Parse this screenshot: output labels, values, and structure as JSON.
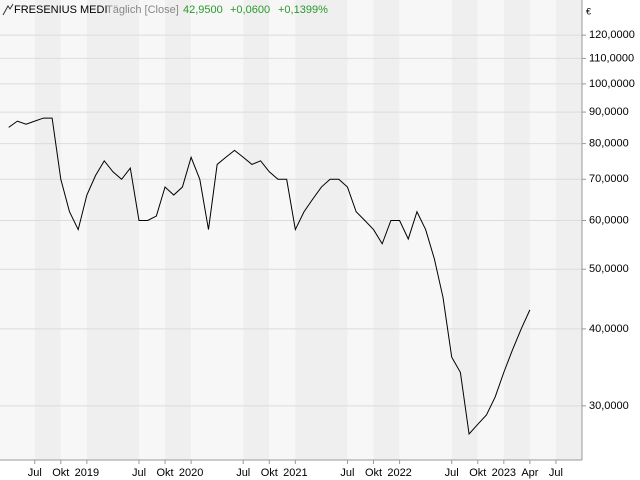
{
  "chart_data": {
    "type": "line",
    "title": "FRESENIUS MEDI",
    "subtitle": "Täglich [Close]",
    "annotations": [
      "42,9500",
      "+0,0600",
      "+0,1399%"
    ],
    "y_unit": "€",
    "color": "#000000",
    "log_y": true,
    "grid": true,
    "x": [
      "2018-04",
      "2018-05",
      "2018-06",
      "2018-07",
      "2018-08",
      "2018-09",
      "2018-10",
      "2018-11",
      "2018-12",
      "2019-01",
      "2019-02",
      "2019-03",
      "2019-04",
      "2019-05",
      "2019-06",
      "2019-07",
      "2019-08",
      "2019-09",
      "2019-10",
      "2019-11",
      "2019-12",
      "2020-01",
      "2020-02",
      "2020-03",
      "2020-04",
      "2020-05",
      "2020-06",
      "2020-07",
      "2020-08",
      "2020-09",
      "2020-10",
      "2020-11",
      "2020-12",
      "2021-01",
      "2021-02",
      "2021-03",
      "2021-04",
      "2021-05",
      "2021-06",
      "2021-07",
      "2021-08",
      "2021-09",
      "2021-10",
      "2021-11",
      "2021-12",
      "2022-01",
      "2022-02",
      "2022-03",
      "2022-04",
      "2022-05",
      "2022-06",
      "2022-07",
      "2022-08",
      "2022-09",
      "2022-10",
      "2022-11",
      "2022-12",
      "2023-01",
      "2023-02",
      "2023-03",
      "2023-04"
    ],
    "values": [
      85,
      87,
      86,
      87,
      88,
      88,
      70,
      62,
      58,
      66,
      71,
      75,
      72,
      70,
      73,
      60,
      60,
      61,
      68,
      66,
      68,
      76,
      70,
      58,
      74,
      76,
      78,
      76,
      74,
      75,
      72,
      70,
      70,
      58,
      62,
      65,
      68,
      70,
      70,
      68,
      62,
      60,
      58,
      55,
      60,
      60,
      56,
      62,
      58,
      52,
      45,
      36,
      34,
      27,
      28,
      29,
      31,
      34,
      37,
      40,
      42.95
    ],
    "xlim": [
      "2018-03",
      "2023-10"
    ],
    "xticks": [
      {
        "value": "2018-07",
        "label": "Jul"
      },
      {
        "value": "2018-10",
        "label": "Okt"
      },
      {
        "value": "2019-01",
        "label": "2019"
      },
      {
        "value": "2019-07",
        "label": "Jul"
      },
      {
        "value": "2019-10",
        "label": "Okt"
      },
      {
        "value": "2020-01",
        "label": "2020"
      },
      {
        "value": "2020-07",
        "label": "Jul"
      },
      {
        "value": "2020-10",
        "label": "Okt"
      },
      {
        "value": "2021-01",
        "label": "2021"
      },
      {
        "value": "2021-07",
        "label": "Jul"
      },
      {
        "value": "2021-10",
        "label": "Okt"
      },
      {
        "value": "2022-01",
        "label": "2022"
      },
      {
        "value": "2022-07",
        "label": "Jul"
      },
      {
        "value": "2022-10",
        "label": "Okt"
      },
      {
        "value": "2023-01",
        "label": "2023"
      },
      {
        "value": "2023-04",
        "label": "Apr"
      },
      {
        "value": "2023-07",
        "label": "Jul"
      }
    ],
    "ylim": [
      24.5,
      127
    ],
    "yticks": [
      {
        "value": 30,
        "label": "30,0000"
      },
      {
        "value": 40,
        "label": "40,0000"
      },
      {
        "value": 50,
        "label": "50,0000"
      },
      {
        "value": 60,
        "label": "60,0000"
      },
      {
        "value": 70,
        "label": "70,0000"
      },
      {
        "value": 80,
        "label": "80,0000"
      },
      {
        "value": 90,
        "label": "90,0000"
      },
      {
        "value": 100,
        "label": "100,0000"
      },
      {
        "value": 110,
        "label": "110,0000"
      },
      {
        "value": 120,
        "label": "120,0000"
      }
    ]
  }
}
